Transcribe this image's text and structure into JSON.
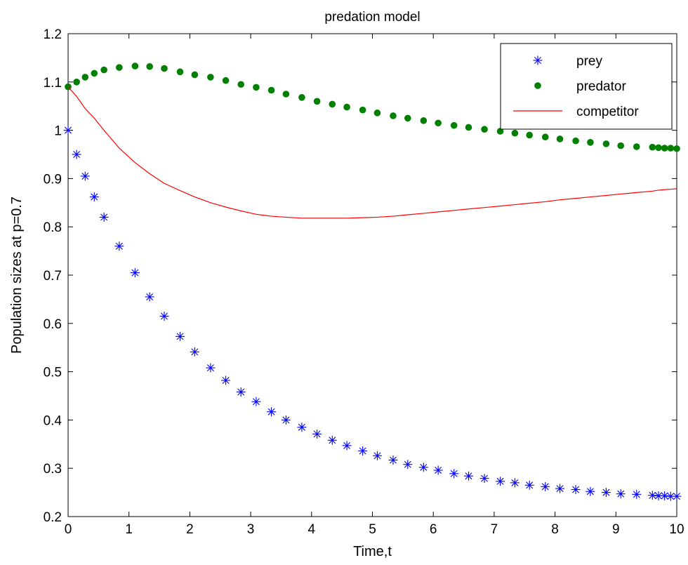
{
  "chart_data": {
    "type": "line",
    "title": "predation model",
    "xlabel": "Time,t",
    "ylabel": "Population sizes at p=0.7",
    "xlim": [
      0,
      10
    ],
    "ylim": [
      0.2,
      1.2
    ],
    "xticks": [
      0,
      1,
      2,
      3,
      4,
      5,
      6,
      7,
      8,
      9,
      10
    ],
    "xtick_labels": [
      "0",
      "1",
      "2",
      "3",
      "4",
      "5",
      "6",
      "7",
      "8",
      "9",
      "10"
    ],
    "yticks": [
      0.2,
      0.3,
      0.4,
      0.5,
      0.6,
      0.7,
      0.8,
      0.9,
      1.0,
      1.1,
      1.2
    ],
    "ytick_labels": [
      "0.2",
      "0.3",
      "0.4",
      "0.5",
      "0.6",
      "0.7",
      "0.8",
      "0.9",
      "1",
      "1.1",
      "1.2"
    ],
    "grid": false,
    "legend_position": "top-right",
    "series": [
      {
        "name": "prey",
        "marker": "asterisk",
        "line": "none",
        "color": "#0000ff",
        "x": [
          0,
          0.14,
          0.28,
          0.43,
          0.59,
          0.84,
          1.1,
          1.34,
          1.58,
          1.84,
          2.08,
          2.34,
          2.59,
          2.84,
          3.09,
          3.34,
          3.58,
          3.84,
          4.09,
          4.34,
          4.58,
          4.84,
          5.08,
          5.34,
          5.58,
          5.84,
          6.08,
          6.34,
          6.58,
          6.84,
          7.1,
          7.34,
          7.58,
          7.84,
          8.08,
          8.34,
          8.58,
          8.84,
          9.08,
          9.34,
          9.6,
          9.7,
          9.8,
          9.9,
          10
        ],
        "y": [
          1.0,
          0.95,
          0.905,
          0.862,
          0.82,
          0.76,
          0.705,
          0.655,
          0.615,
          0.573,
          0.541,
          0.508,
          0.482,
          0.458,
          0.438,
          0.417,
          0.4,
          0.385,
          0.371,
          0.358,
          0.347,
          0.336,
          0.326,
          0.317,
          0.308,
          0.302,
          0.296,
          0.289,
          0.284,
          0.279,
          0.273,
          0.27,
          0.265,
          0.262,
          0.258,
          0.256,
          0.252,
          0.25,
          0.247,
          0.246,
          0.244,
          0.243,
          0.243,
          0.242,
          0.242
        ]
      },
      {
        "name": "predator",
        "marker": "dot",
        "line": "none",
        "color": "#007f00",
        "x": [
          0,
          0.14,
          0.28,
          0.43,
          0.59,
          0.84,
          1.1,
          1.34,
          1.58,
          1.84,
          2.08,
          2.34,
          2.59,
          2.84,
          3.09,
          3.34,
          3.58,
          3.84,
          4.09,
          4.34,
          4.58,
          4.84,
          5.08,
          5.34,
          5.58,
          5.84,
          6.08,
          6.34,
          6.58,
          6.84,
          7.1,
          7.34,
          7.58,
          7.84,
          8.08,
          8.34,
          8.58,
          8.84,
          9.08,
          9.34,
          9.6,
          9.7,
          9.8,
          9.9,
          10
        ],
        "y": [
          1.09,
          1.1,
          1.11,
          1.118,
          1.125,
          1.13,
          1.133,
          1.132,
          1.128,
          1.121,
          1.115,
          1.11,
          1.103,
          1.095,
          1.089,
          1.083,
          1.075,
          1.068,
          1.06,
          1.054,
          1.048,
          1.042,
          1.036,
          1.03,
          1.025,
          1.02,
          1.015,
          1.01,
          1.006,
          1.002,
          0.998,
          0.994,
          0.99,
          0.986,
          0.982,
          0.978,
          0.975,
          0.972,
          0.968,
          0.966,
          0.965,
          0.964,
          0.963,
          0.963,
          0.962
        ]
      },
      {
        "name": "competitor",
        "marker": "none",
        "line": "solid",
        "color": "#ff0000",
        "x": [
          0,
          0.14,
          0.28,
          0.43,
          0.59,
          0.84,
          1.1,
          1.34,
          1.58,
          1.84,
          2.08,
          2.34,
          2.59,
          2.84,
          3.09,
          3.34,
          3.58,
          3.84,
          4.09,
          4.34,
          4.58,
          4.84,
          5.08,
          5.34,
          5.58,
          5.84,
          6.08,
          6.34,
          6.58,
          6.84,
          7.1,
          7.34,
          7.58,
          7.84,
          8.08,
          8.34,
          8.58,
          8.84,
          9.08,
          9.34,
          9.6,
          9.7,
          9.8,
          9.9,
          10
        ],
        "y": [
          1.09,
          1.07,
          1.045,
          1.025,
          1.0,
          0.963,
          0.933,
          0.91,
          0.89,
          0.875,
          0.862,
          0.85,
          0.841,
          0.833,
          0.826,
          0.822,
          0.82,
          0.818,
          0.818,
          0.818,
          0.818,
          0.819,
          0.82,
          0.822,
          0.825,
          0.828,
          0.831,
          0.834,
          0.837,
          0.84,
          0.843,
          0.846,
          0.849,
          0.852,
          0.856,
          0.859,
          0.862,
          0.865,
          0.868,
          0.871,
          0.874,
          0.876,
          0.877,
          0.878,
          0.879
        ]
      }
    ]
  }
}
